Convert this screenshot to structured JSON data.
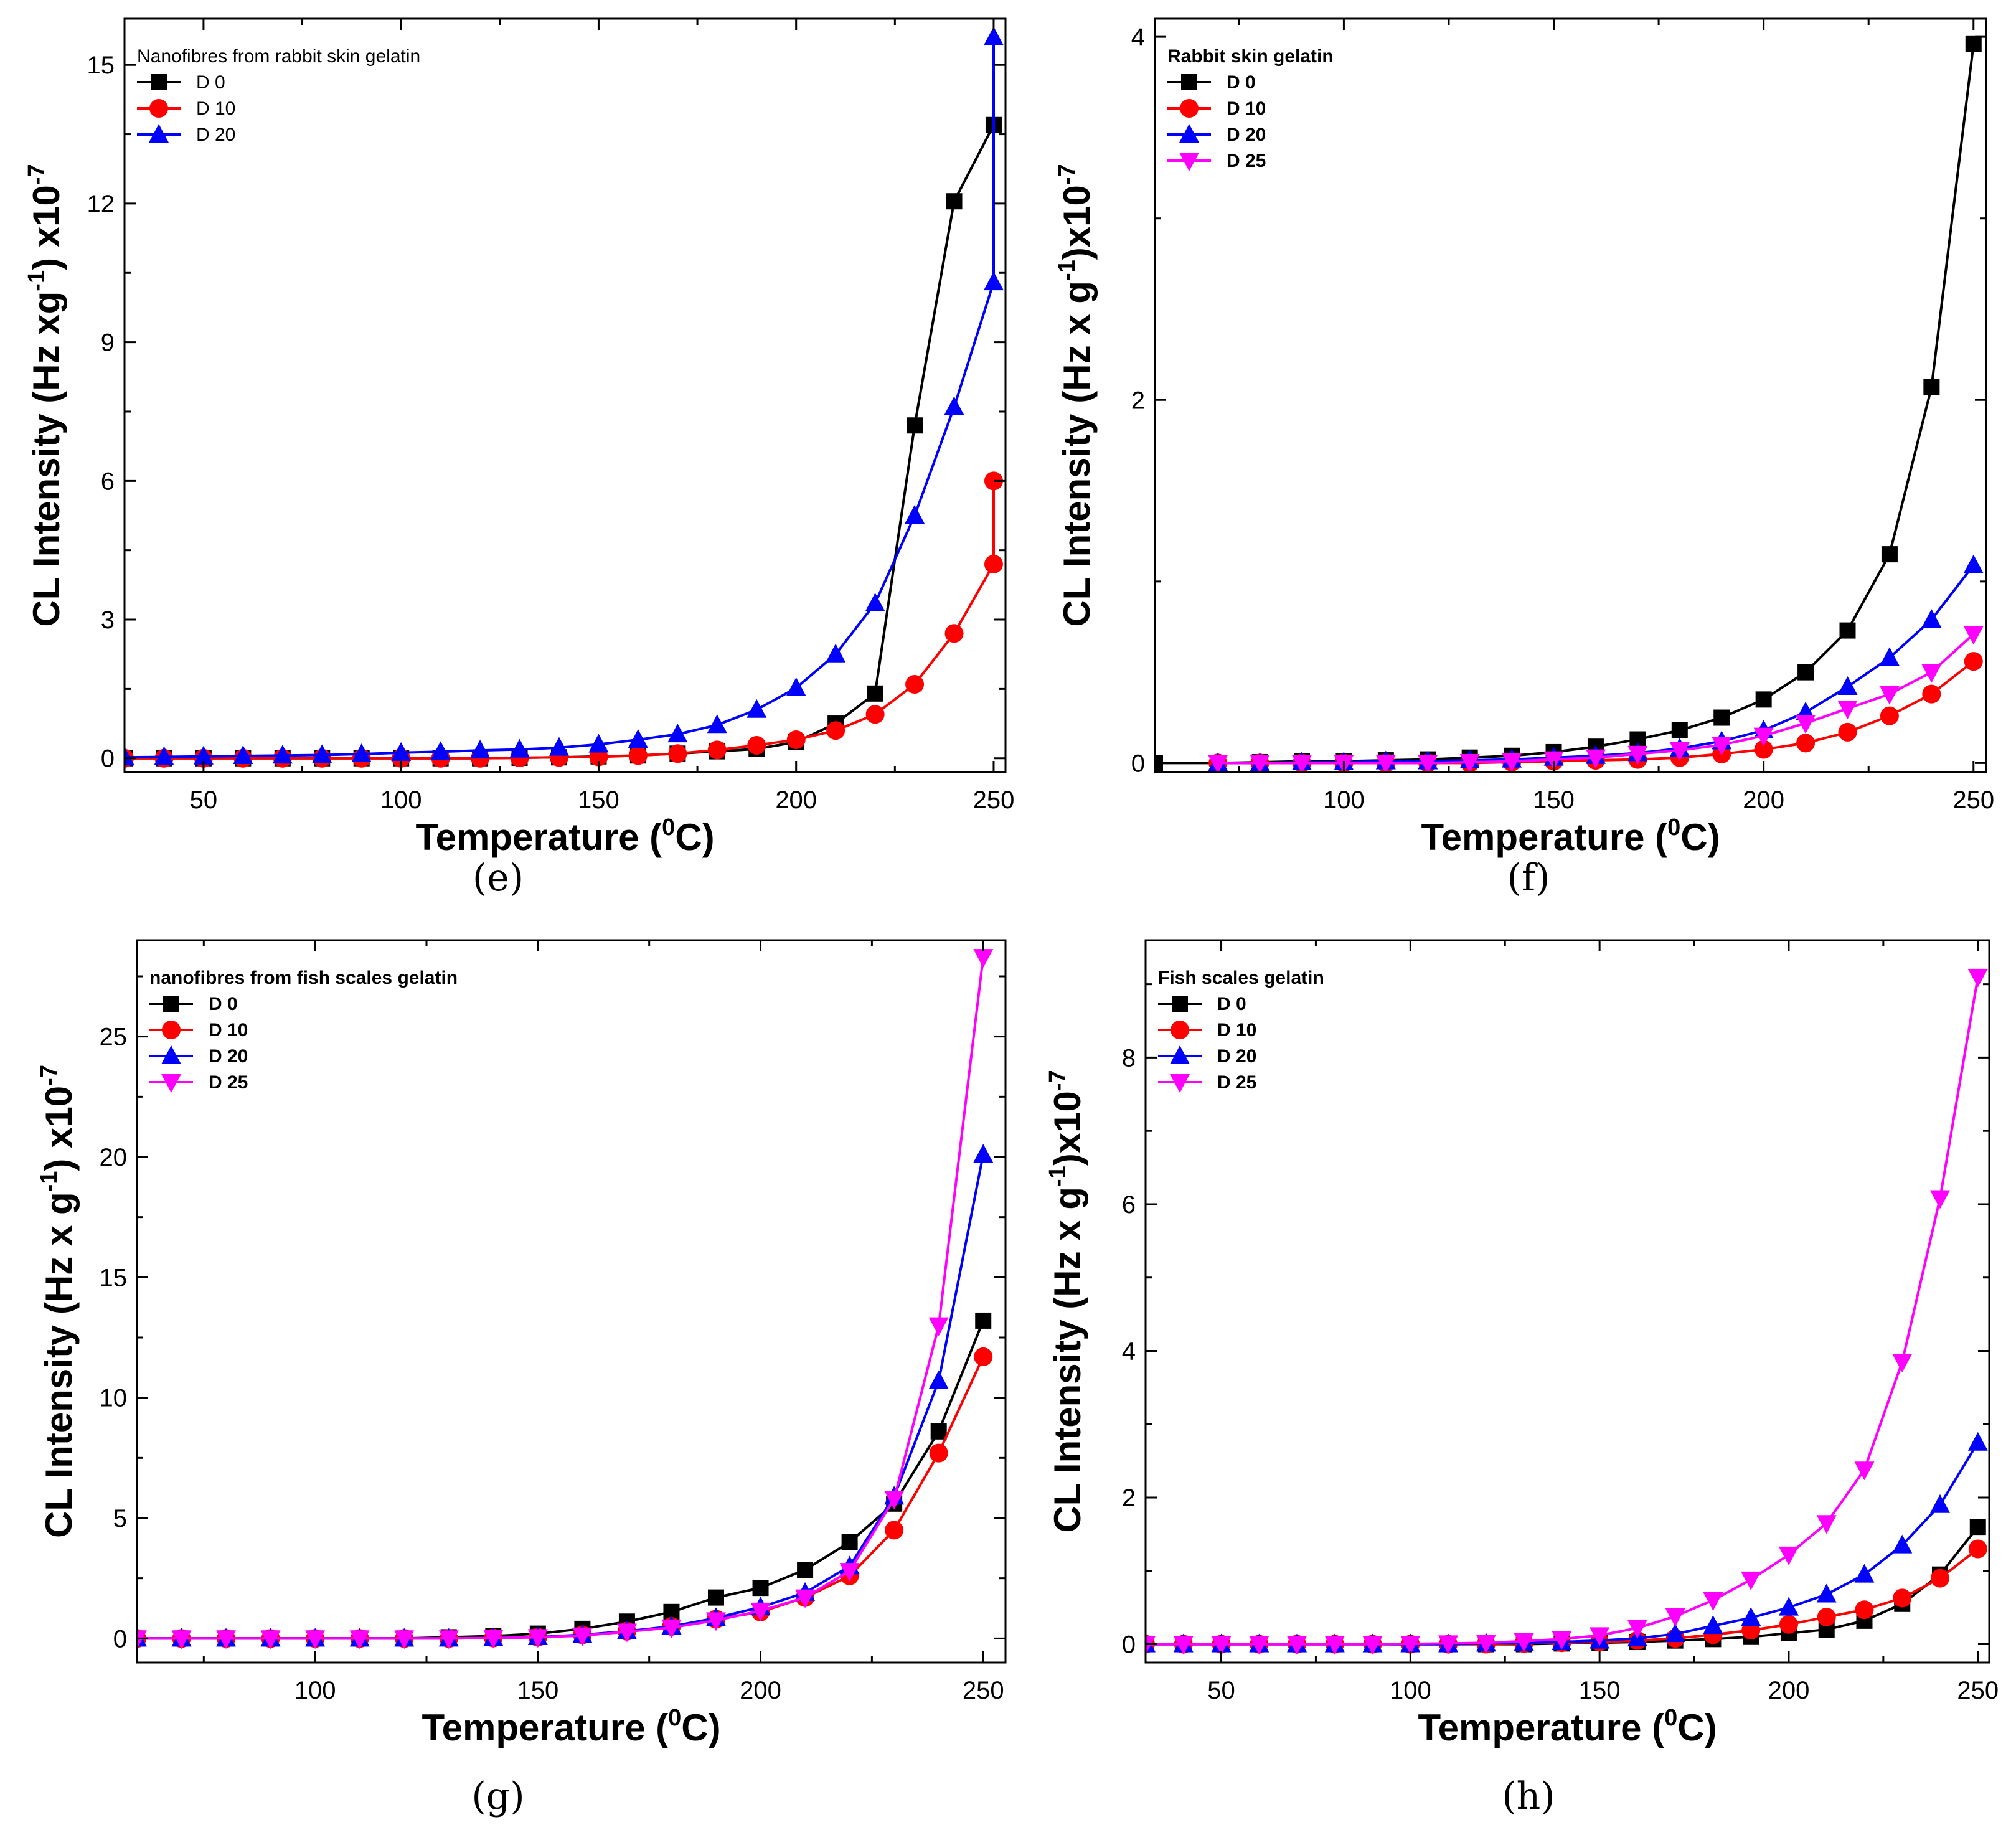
{
  "chart_data": [
    {
      "panel": "(e)",
      "type": "line",
      "title": "",
      "xlabel": "Temperature (",
      "xlabel_sup": "0",
      "xlabel_tail": "C)",
      "ylabel_parts": [
        "CL Intensity (Hz xg",
        "-1",
        ") x10",
        "-7"
      ],
      "xlim": [
        30,
        253
      ],
      "ylim": [
        -0.3,
        16.0
      ],
      "xticks": [
        50,
        100,
        150,
        200,
        250
      ],
      "yticks": [
        0,
        3,
        6,
        9,
        12,
        15
      ],
      "legend_title": "Nanofibres from rabbit skin gelatin",
      "legend_position": "top-left",
      "series": [
        {
          "name": "D 0",
          "color": "#000000",
          "marker": "square",
          "x": [
            30,
            40,
            50,
            60,
            70,
            80,
            90,
            100,
            110,
            120,
            130,
            140,
            150,
            160,
            170,
            180,
            190,
            200,
            210,
            220,
            230,
            240,
            250
          ],
          "y": [
            0,
            0,
            0,
            0,
            0,
            0,
            0,
            0,
            0,
            0,
            0.01,
            0.02,
            0.04,
            0.06,
            0.1,
            0.15,
            0.2,
            0.35,
            0.75,
            1.4,
            7.2,
            12.05,
            13.7
          ]
        },
        {
          "name": "D 10",
          "color": "#ff0000",
          "marker": "circle",
          "x": [
            30,
            40,
            50,
            60,
            70,
            80,
            90,
            100,
            110,
            120,
            130,
            140,
            150,
            160,
            170,
            180,
            190,
            200,
            210,
            220,
            230,
            240,
            250,
            250
          ],
          "y": [
            0,
            0,
            0,
            0,
            0,
            0,
            0,
            0,
            0,
            0,
            0.01,
            0.02,
            0.03,
            0.06,
            0.1,
            0.18,
            0.28,
            0.4,
            0.6,
            0.95,
            1.6,
            2.7,
            4.2,
            6.0
          ]
        },
        {
          "name": "D 20",
          "color": "#0000ff",
          "marker": "triangle-up",
          "x": [
            30,
            40,
            50,
            60,
            70,
            80,
            90,
            100,
            110,
            120,
            130,
            140,
            150,
            160,
            170,
            180,
            190,
            200,
            210,
            220,
            230,
            240,
            250,
            250
          ],
          "y": [
            0.02,
            0.03,
            0.04,
            0.05,
            0.06,
            0.07,
            0.09,
            0.12,
            0.14,
            0.17,
            0.19,
            0.23,
            0.3,
            0.4,
            0.52,
            0.72,
            1.05,
            1.52,
            2.25,
            3.35,
            5.25,
            7.6,
            10.3,
            15.6
          ]
        }
      ]
    },
    {
      "panel": "(f)",
      "type": "line",
      "title": "",
      "xlabel": "Temperature (",
      "xlabel_sup": "0",
      "xlabel_tail": "C)",
      "ylabel_parts": [
        "CL Intensity (Hz x g",
        "-1",
        ")x10",
        "-7"
      ],
      "xlim": [
        55,
        253
      ],
      "ylim": [
        -0.05,
        4.1
      ],
      "xticks": [
        100,
        150,
        200,
        250
      ],
      "yticks": [
        0,
        2,
        4
      ],
      "legend_title": "Rabbit skin gelatin",
      "legend_position": "top-left",
      "series": [
        {
          "name": "D 0",
          "color": "#000000",
          "marker": "square",
          "x": [
            55,
            70,
            80,
            90,
            100,
            110,
            120,
            130,
            140,
            150,
            160,
            170,
            180,
            190,
            200,
            210,
            220,
            230,
            240,
            250
          ],
          "y": [
            0,
            0,
            0.005,
            0.01,
            0.01,
            0.015,
            0.02,
            0.03,
            0.04,
            0.06,
            0.09,
            0.13,
            0.18,
            0.25,
            0.35,
            0.5,
            0.73,
            1.15,
            2.07,
            3.96
          ]
        },
        {
          "name": "D 10",
          "color": "#ff0000",
          "marker": "circle",
          "x": [
            70,
            80,
            90,
            100,
            110,
            120,
            130,
            140,
            150,
            160,
            170,
            180,
            190,
            200,
            210,
            220,
            230,
            240,
            250
          ],
          "y": [
            0,
            0,
            0,
            0,
            0,
            0,
            0,
            0.005,
            0.01,
            0.015,
            0.02,
            0.03,
            0.05,
            0.075,
            0.11,
            0.17,
            0.26,
            0.38,
            0.56
          ]
        },
        {
          "name": "D 20",
          "color": "#0000ff",
          "marker": "triangle-up",
          "x": [
            70,
            80,
            90,
            100,
            110,
            120,
            130,
            140,
            150,
            160,
            170,
            180,
            190,
            200,
            210,
            220,
            230,
            240,
            250
          ],
          "y": [
            0,
            0,
            0.005,
            0.005,
            0.01,
            0.01,
            0.015,
            0.02,
            0.03,
            0.04,
            0.055,
            0.08,
            0.12,
            0.18,
            0.28,
            0.42,
            0.58,
            0.79,
            1.09
          ]
        },
        {
          "name": "D 25",
          "color": "#ff00ff",
          "marker": "triangle-down",
          "x": [
            70,
            80,
            90,
            100,
            110,
            120,
            130,
            140,
            150,
            160,
            170,
            180,
            190,
            200,
            210,
            220,
            230,
            240,
            250
          ],
          "y": [
            0,
            0,
            0,
            0,
            0,
            0,
            0.005,
            0.01,
            0.02,
            0.03,
            0.05,
            0.07,
            0.1,
            0.15,
            0.22,
            0.3,
            0.38,
            0.5,
            0.71
          ]
        }
      ]
    },
    {
      "panel": "(g)",
      "type": "line",
      "title": "",
      "xlabel": "Temperature (",
      "xlabel_sup": "0",
      "xlabel_tail": "C)",
      "ylabel_parts": [
        "CL Intensity (Hz x g",
        "-1",
        ") x10",
        "-7"
      ],
      "xlim": [
        60,
        255
      ],
      "ylim": [
        -1.0,
        29.0
      ],
      "xticks": [
        100,
        150,
        200,
        250
      ],
      "yticks": [
        0,
        5,
        10,
        15,
        20,
        25
      ],
      "legend_title": "nanofibres from fish scales gelatin",
      "legend_position": "top-left",
      "series": [
        {
          "name": "D 0",
          "color": "#000000",
          "marker": "square",
          "x": [
            60,
            70,
            80,
            90,
            100,
            110,
            120,
            130,
            140,
            150,
            160,
            170,
            180,
            190,
            200,
            210,
            220,
            230,
            240,
            250
          ],
          "y": [
            0,
            0,
            0,
            0,
            0,
            0,
            0,
            0.05,
            0.1,
            0.2,
            0.4,
            0.7,
            1.1,
            1.7,
            2.1,
            2.85,
            4.0,
            5.6,
            8.6,
            13.2
          ]
        },
        {
          "name": "D 10",
          "color": "#ff0000",
          "marker": "circle",
          "x": [
            60,
            70,
            80,
            90,
            100,
            110,
            120,
            130,
            140,
            150,
            160,
            170,
            180,
            190,
            200,
            210,
            220,
            230,
            240,
            250
          ],
          "y": [
            0,
            0,
            0,
            0,
            0,
            0,
            0,
            0,
            0.02,
            0.05,
            0.15,
            0.3,
            0.5,
            0.8,
            1.1,
            1.7,
            2.6,
            4.5,
            7.7,
            11.7
          ]
        },
        {
          "name": "D 20",
          "color": "#0000ff",
          "marker": "triangle-up",
          "x": [
            60,
            70,
            80,
            90,
            100,
            110,
            120,
            130,
            140,
            150,
            160,
            170,
            180,
            190,
            200,
            210,
            220,
            230,
            240,
            250
          ],
          "y": [
            0,
            0,
            0,
            0,
            0,
            0,
            0,
            0,
            0.02,
            0.06,
            0.15,
            0.3,
            0.5,
            0.85,
            1.3,
            1.9,
            3.0,
            5.9,
            10.7,
            20.1
          ]
        },
        {
          "name": "D 25",
          "color": "#ff00ff",
          "marker": "triangle-down",
          "x": [
            60,
            70,
            80,
            90,
            100,
            110,
            120,
            130,
            140,
            150,
            160,
            170,
            180,
            190,
            200,
            210,
            220,
            230,
            240,
            250
          ],
          "y": [
            0,
            0,
            0,
            0,
            0,
            0,
            0,
            0,
            0.02,
            0.05,
            0.12,
            0.28,
            0.45,
            0.75,
            1.15,
            1.7,
            2.8,
            5.8,
            13.0,
            28.3
          ]
        }
      ]
    },
    {
      "panel": "(h)",
      "type": "line",
      "title": "",
      "xlabel": "Temperature (",
      "xlabel_sup": "0",
      "xlabel_tail": "C)",
      "ylabel_parts": [
        "CL Intensity (Hz x g",
        "-1",
        ")x10",
        "-7"
      ],
      "xlim": [
        30,
        253
      ],
      "ylim": [
        -0.25,
        9.6
      ],
      "xticks": [
        50,
        100,
        150,
        200,
        250
      ],
      "yticks": [
        0,
        2,
        4,
        6,
        8
      ],
      "legend_title": "Fish scales gelatin",
      "legend_position": "top-left",
      "series": [
        {
          "name": "D 0",
          "color": "#000000",
          "marker": "square",
          "x": [
            30,
            40,
            50,
            60,
            70,
            80,
            90,
            100,
            110,
            120,
            130,
            140,
            150,
            160,
            170,
            180,
            190,
            200,
            210,
            220,
            230,
            240,
            250
          ],
          "y": [
            0,
            0,
            0,
            0,
            0,
            0,
            0,
            0,
            0,
            0,
            0,
            0.01,
            0.02,
            0.03,
            0.05,
            0.07,
            0.1,
            0.15,
            0.2,
            0.32,
            0.55,
            0.95,
            1.6
          ]
        },
        {
          "name": "D 10",
          "color": "#ff0000",
          "marker": "circle",
          "x": [
            30,
            40,
            50,
            60,
            70,
            80,
            90,
            100,
            110,
            120,
            130,
            140,
            150,
            160,
            170,
            180,
            190,
            200,
            210,
            220,
            230,
            240,
            250
          ],
          "y": [
            0,
            0,
            0,
            0,
            0,
            0,
            0,
            0,
            0,
            0,
            0.01,
            0.02,
            0.03,
            0.05,
            0.08,
            0.13,
            0.19,
            0.27,
            0.37,
            0.47,
            0.63,
            0.9,
            1.3
          ]
        },
        {
          "name": "D 20",
          "color": "#0000ff",
          "marker": "triangle-up",
          "x": [
            30,
            40,
            50,
            60,
            70,
            80,
            90,
            100,
            110,
            120,
            130,
            140,
            150,
            160,
            170,
            180,
            190,
            200,
            210,
            220,
            230,
            240,
            250
          ],
          "y": [
            0,
            0,
            0,
            0,
            0,
            0,
            0,
            0,
            0,
            0.01,
            0.02,
            0.03,
            0.05,
            0.08,
            0.14,
            0.25,
            0.36,
            0.5,
            0.68,
            0.95,
            1.35,
            1.9,
            2.75
          ]
        },
        {
          "name": "D 25",
          "color": "#ff00ff",
          "marker": "triangle-down",
          "x": [
            30,
            40,
            50,
            60,
            70,
            80,
            90,
            100,
            110,
            120,
            130,
            140,
            150,
            160,
            170,
            180,
            190,
            200,
            210,
            220,
            230,
            240,
            250
          ],
          "y": [
            0,
            0,
            0,
            0,
            0,
            0,
            0,
            0.005,
            0.01,
            0.02,
            0.04,
            0.07,
            0.12,
            0.22,
            0.38,
            0.6,
            0.88,
            1.22,
            1.65,
            2.38,
            3.85,
            6.08,
            9.1
          ]
        }
      ]
    }
  ]
}
